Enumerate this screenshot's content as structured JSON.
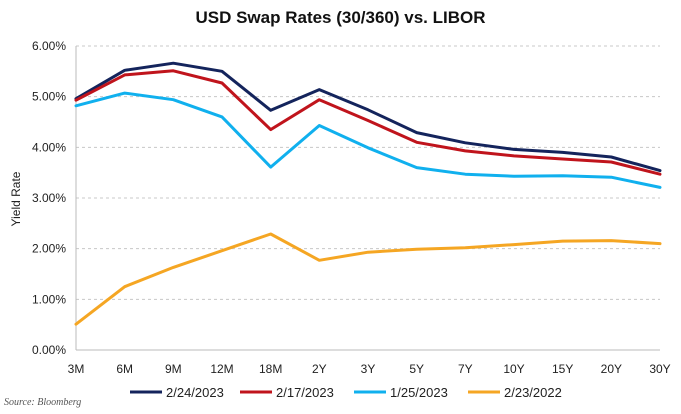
{
  "chart_data": {
    "type": "line",
    "title": "USD Swap Rates (30/360) vs. LIBOR",
    "xlabel": "",
    "ylabel": "Yield Rate",
    "categories": [
      "3M",
      "6M",
      "9M",
      "12M",
      "18M",
      "2Y",
      "3Y",
      "5Y",
      "7Y",
      "10Y",
      "15Y",
      "20Y",
      "30Y"
    ],
    "ylim": [
      0,
      6
    ],
    "yticks": [
      "0.00%",
      "1.00%",
      "2.00%",
      "3.00%",
      "4.00%",
      "5.00%",
      "6.00%"
    ],
    "grid": "horizontal dashed",
    "legend_position": "bottom",
    "series": [
      {
        "name": "2/24/2023",
        "color": "#14245c",
        "values": [
          4.96,
          5.52,
          5.66,
          5.5,
          4.73,
          5.14,
          4.74,
          4.29,
          4.09,
          3.96,
          3.9,
          3.81,
          3.54
        ]
      },
      {
        "name": "2/17/2023",
        "color": "#c0141c",
        "values": [
          4.93,
          5.43,
          5.51,
          5.27,
          4.35,
          4.94,
          4.53,
          4.1,
          3.93,
          3.83,
          3.77,
          3.71,
          3.47
        ]
      },
      {
        "name": "1/25/2023",
        "color": "#10b0ee",
        "values": [
          4.82,
          5.07,
          4.94,
          4.6,
          3.61,
          4.43,
          3.99,
          3.6,
          3.47,
          3.43,
          3.44,
          3.41,
          3.21
        ]
      },
      {
        "name": "2/23/2022",
        "color": "#f5a623",
        "values": [
          0.51,
          1.25,
          1.63,
          1.96,
          2.29,
          1.77,
          1.93,
          1.99,
          2.02,
          2.08,
          2.15,
          2.16,
          2.1
        ]
      }
    ]
  },
  "source_note": "Source: Bloomberg"
}
